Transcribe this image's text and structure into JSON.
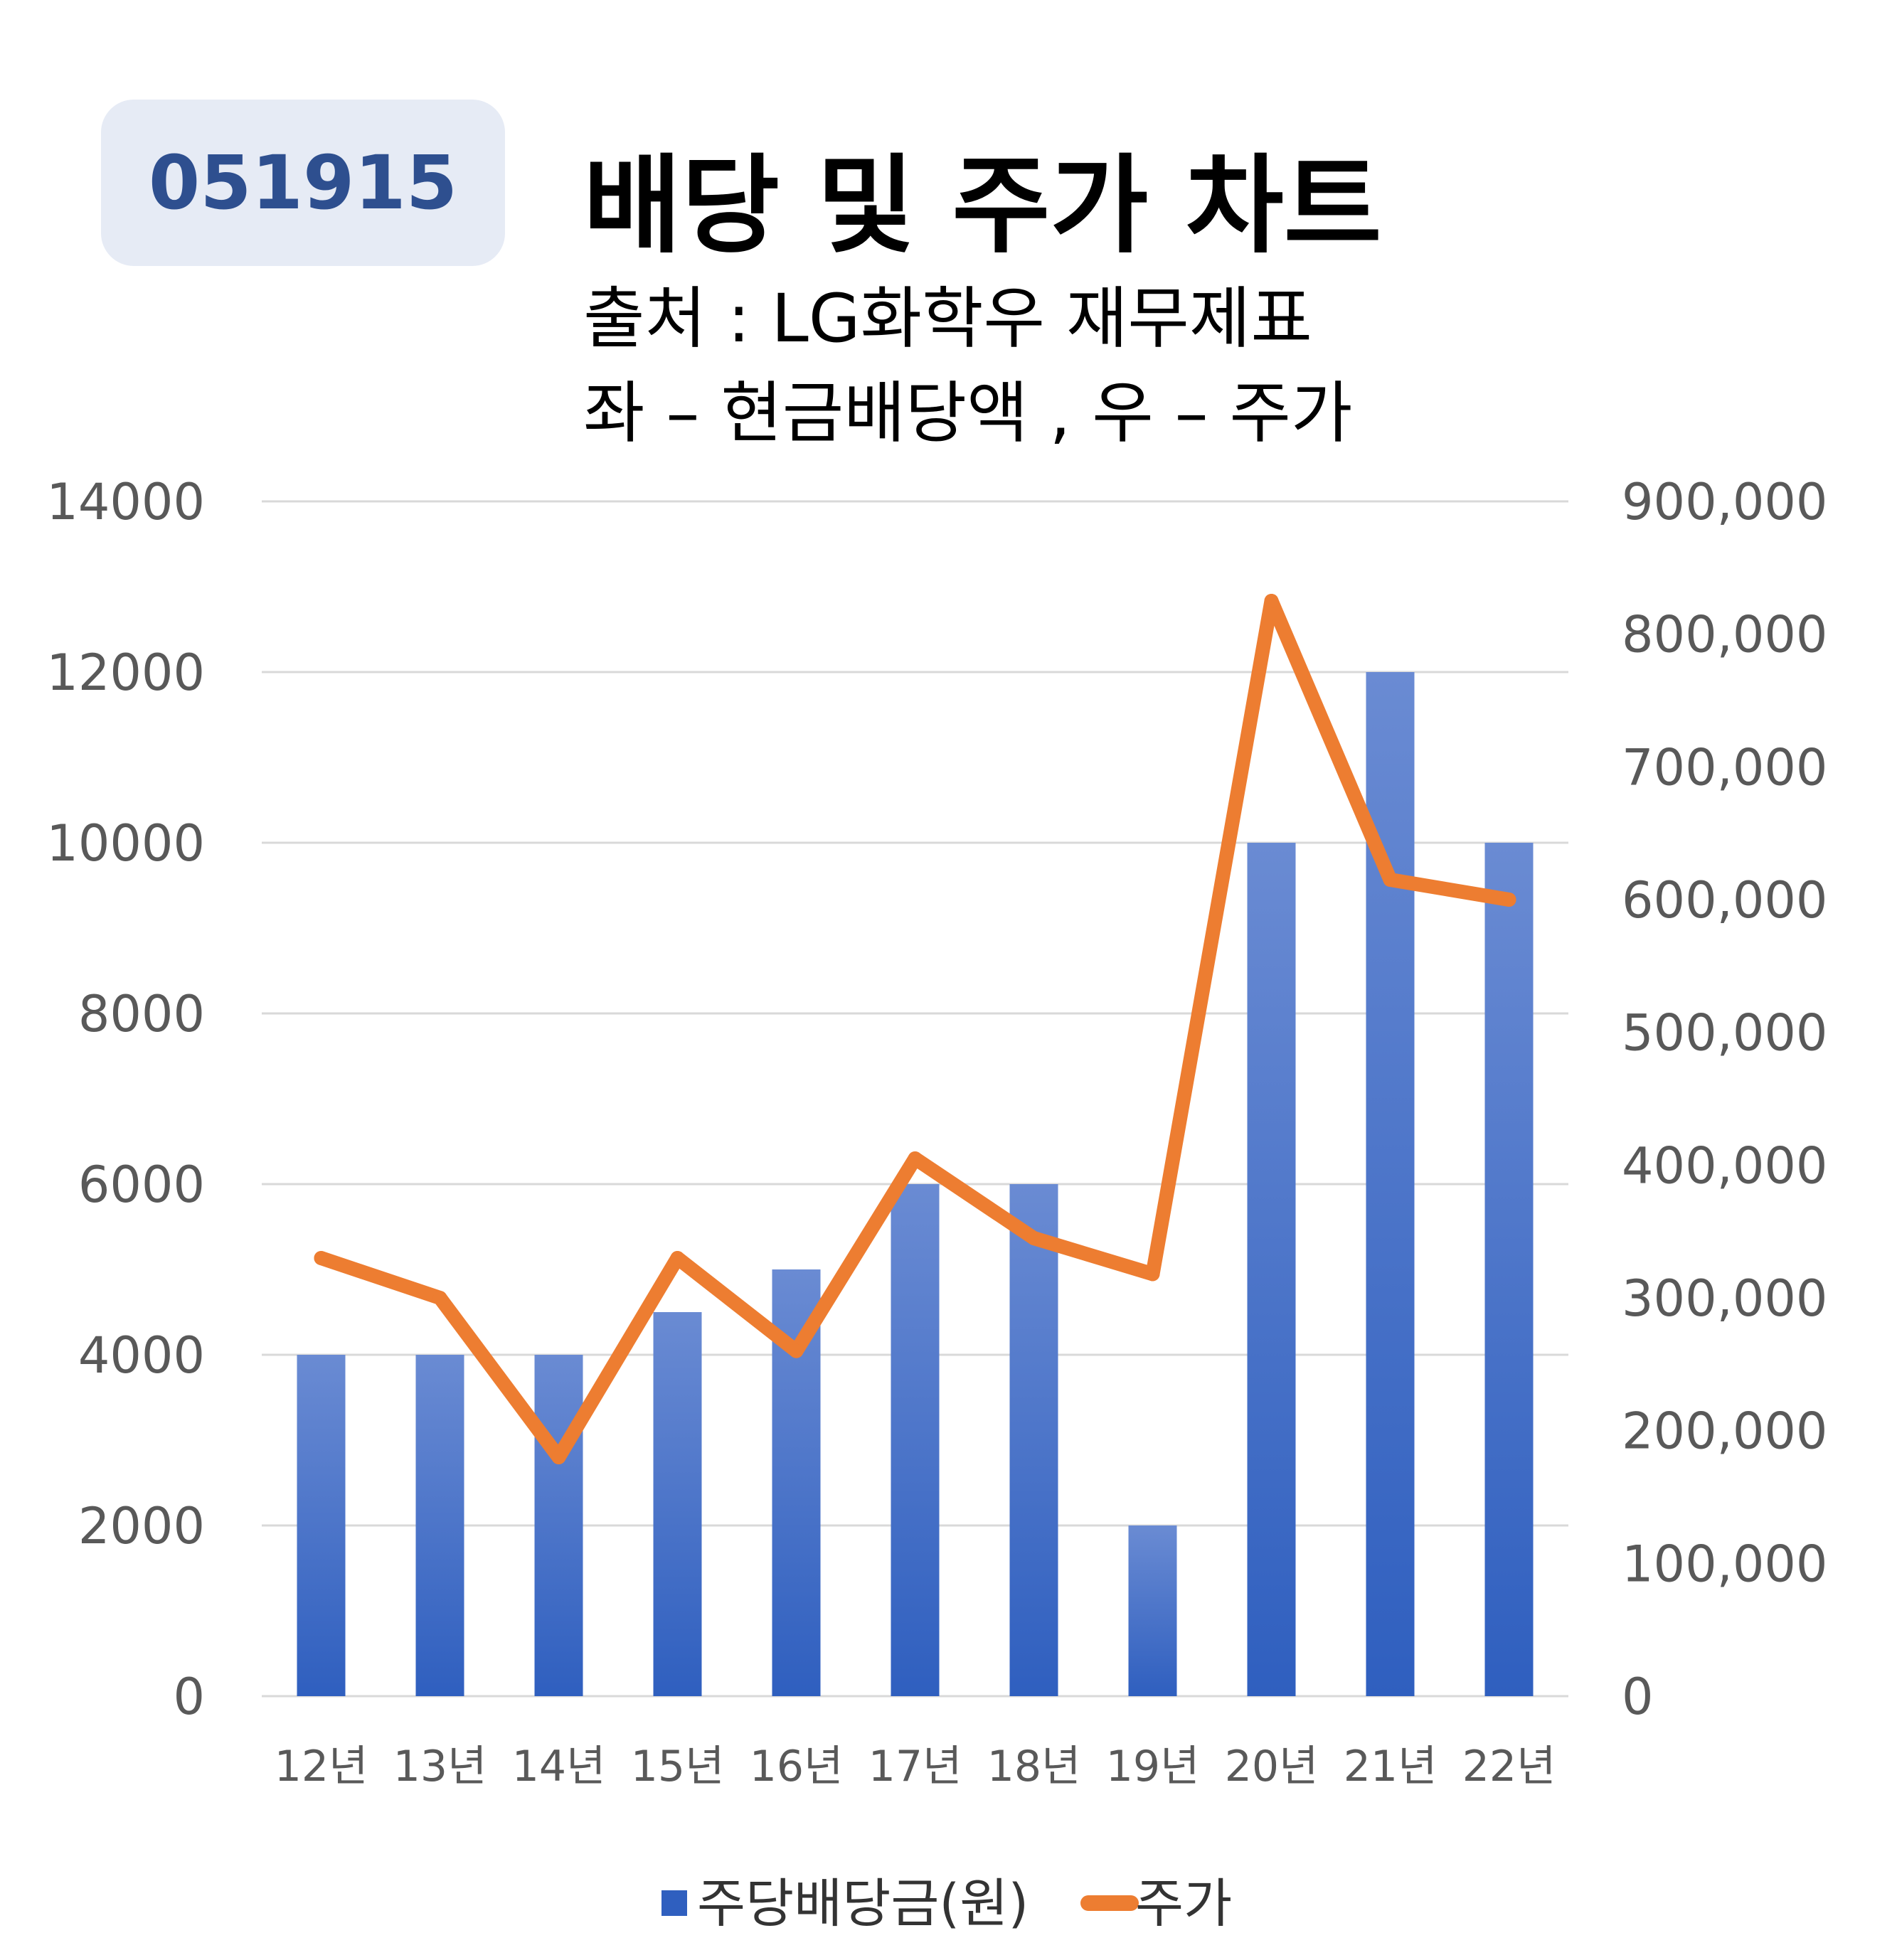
{
  "badge": {
    "ticker": "051915"
  },
  "header": {
    "title": "배당 및 주가 차트",
    "subtitle_line1": "출처 : LG화학우 재무제표",
    "subtitle_line2": "좌 – 현금배당액 , 우 – 주가"
  },
  "colors": {
    "bar_top": "#6a8bd3",
    "bar_bottom": "#2f5fbf",
    "line": "#ed7d31",
    "grid": "#d9d9d9",
    "badge_bg": "#e6ebf5",
    "badge_text": "#2e4f8f"
  },
  "chart_data": {
    "type": "bar",
    "categories": [
      "12년",
      "13년",
      "14년",
      "15년",
      "16년",
      "17년",
      "18년",
      "19년",
      "20년",
      "21년",
      "22년"
    ],
    "series": [
      {
        "name": "주당배당금(원)",
        "type": "bar",
        "axis": "left",
        "values": [
          4000,
          4000,
          4000,
          4500,
          5000,
          6000,
          6000,
          2000,
          10000,
          12000,
          10000
        ]
      },
      {
        "name": "주가",
        "type": "line",
        "axis": "right",
        "values": [
          330000,
          300000,
          180000,
          330000,
          260000,
          405000,
          345000,
          318000,
          825000,
          615000,
          600000
        ]
      }
    ],
    "left_axis": {
      "ylim": [
        0,
        14000
      ],
      "ticks": [
        0,
        2000,
        4000,
        6000,
        8000,
        10000,
        12000,
        14000
      ],
      "tick_labels": [
        "0",
        "2000",
        "4000",
        "6000",
        "8000",
        "10000",
        "12000",
        "14000"
      ]
    },
    "right_axis": {
      "ylim": [
        0,
        900000
      ],
      "ticks": [
        0,
        100000,
        200000,
        300000,
        400000,
        500000,
        600000,
        700000,
        800000,
        900000
      ],
      "tick_labels": [
        "0",
        "100,000",
        "200,000",
        "300,000",
        "400,000",
        "500,000",
        "600,000",
        "700,000",
        "800,000",
        "900,000"
      ]
    },
    "grid": true,
    "legend": "bottom"
  }
}
